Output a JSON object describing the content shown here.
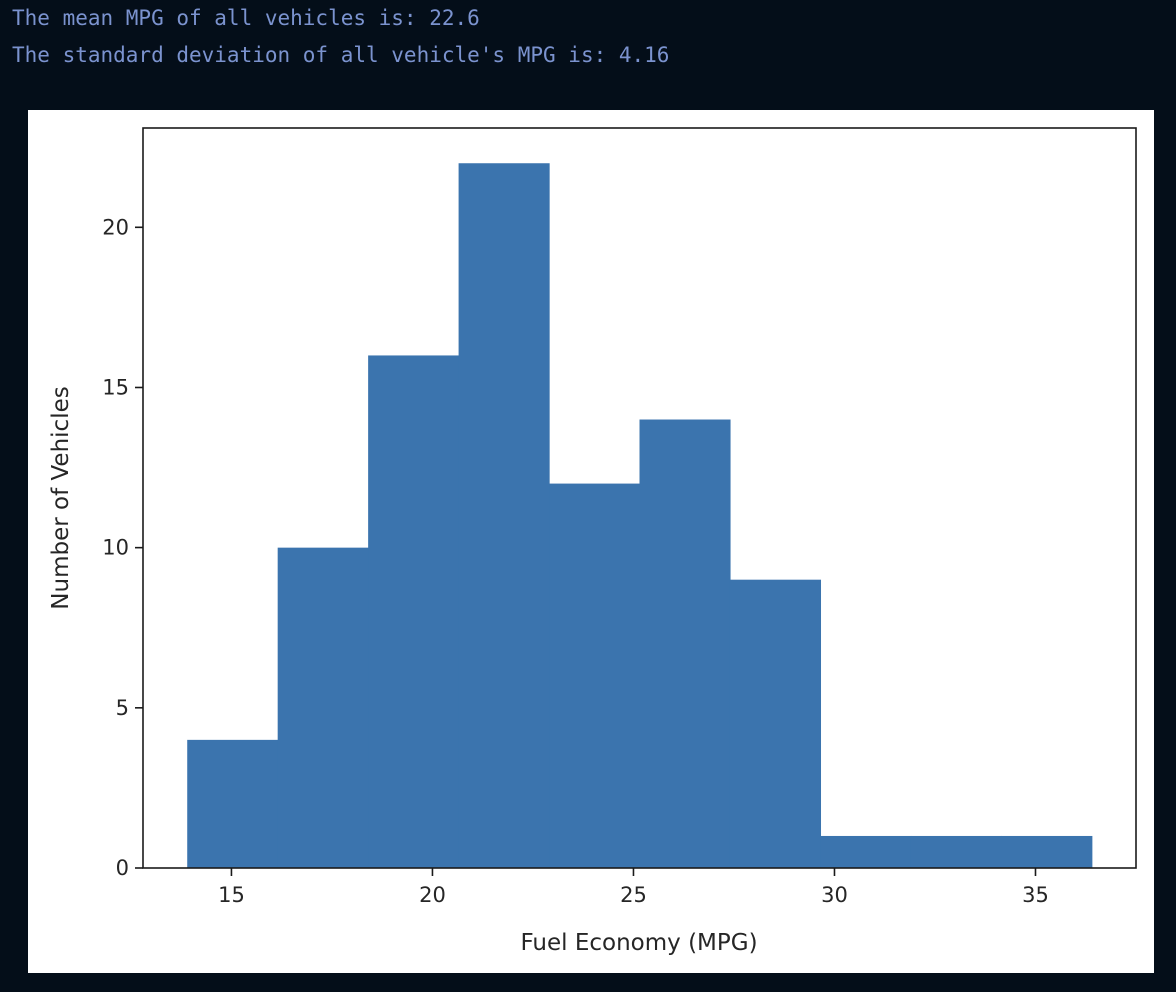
{
  "output": {
    "mean_line": "The mean MPG of all vehicles is: 22.6",
    "std_line": "The standard deviation of all vehicle's MPG is: 4.16"
  },
  "colors": {
    "background": "#040e19",
    "output_text": "#7b93cf",
    "bar": "#3b74ae",
    "figure": "#ffffff"
  },
  "chart_data": {
    "type": "bar",
    "histogram": true,
    "bin_edges": [
      13.9,
      16.15,
      18.4,
      20.65,
      22.9,
      25.15,
      27.4,
      29.65,
      31.9,
      34.15,
      36.4
    ],
    "values": [
      4,
      10,
      16,
      22,
      12,
      14,
      9,
      1,
      1,
      1
    ],
    "xlabel": "Fuel Economy (MPG)",
    "ylabel": "Number of Vehicles",
    "xlim": [
      12.8,
      37.5
    ],
    "ylim": [
      0,
      23.1
    ],
    "xticks": [
      15,
      20,
      25,
      30,
      35
    ],
    "xtick_labels": [
      "15",
      "20",
      "25",
      "30",
      "35"
    ],
    "yticks": [
      0,
      5,
      10,
      15,
      20
    ],
    "ytick_labels": [
      "0",
      "5",
      "10",
      "15",
      "20"
    ],
    "grid": false,
    "legend": false
  }
}
